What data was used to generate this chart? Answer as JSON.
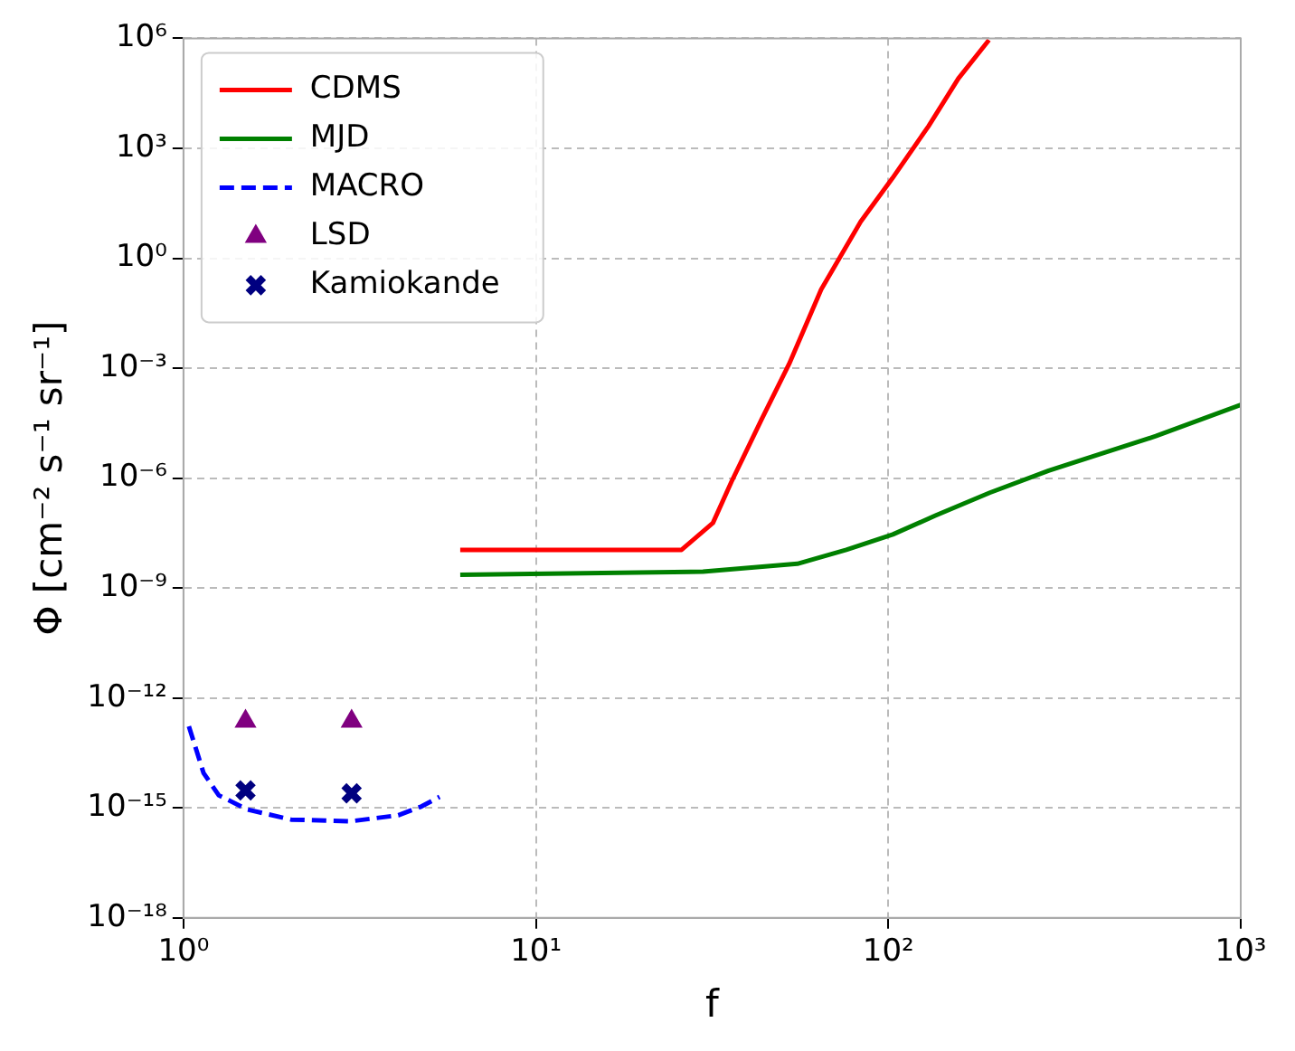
{
  "chart_data": {
    "type": "line",
    "xlabel": "f",
    "ylabel": "Φ [cm⁻² s⁻¹ sr⁻¹]",
    "log": "xy",
    "grid": true,
    "legend": "top left",
    "xlim": [
      1,
      1000
    ],
    "xticks": [
      {
        "value": 1,
        "label": "10⁰"
      },
      {
        "value": 10,
        "label": "10¹"
      },
      {
        "value": 100,
        "label": "10²"
      },
      {
        "value": 1000,
        "label": "10³"
      }
    ],
    "ylim": [
      1e-18,
      1000000.0
    ],
    "yticks": [
      {
        "value": 1e-18,
        "label": "10⁻¹⁸"
      },
      {
        "value": 1e-15,
        "label": "10⁻¹⁵"
      },
      {
        "value": 1e-12,
        "label": "10⁻¹²"
      },
      {
        "value": 1e-09,
        "label": "10⁻⁹"
      },
      {
        "value": 1e-06,
        "label": "10⁻⁶"
      },
      {
        "value": 0.001,
        "label": "10⁻³"
      },
      {
        "value": 1,
        "label": "10⁰"
      },
      {
        "value": 1000,
        "label": "10³"
      },
      {
        "value": 1000000,
        "label": "10⁶"
      }
    ],
    "series": [
      {
        "name": "CDMS",
        "type": "line",
        "color": "#ff0000",
        "line_style": "solid",
        "marker": "none",
        "x": [
          6.1,
          25.9,
          31.8,
          35.9,
          43.7,
          52.3,
          64.5,
          83.5,
          102.6,
          130,
          158,
          193
        ],
        "values": [
          1.1e-08,
          1.1e-08,
          6e-08,
          8e-07,
          4e-05,
          0.0013,
          0.14,
          10,
          150,
          4000,
          80000,
          900000
        ]
      },
      {
        "name": "MJD",
        "type": "line",
        "color": "#008000",
        "line_style": "solid",
        "marker": "none",
        "x": [
          6.1,
          29.8,
          55.2,
          76,
          103,
          136,
          194,
          285,
          574,
          1000
        ],
        "values": [
          2.3e-09,
          2.8e-09,
          4.6e-09,
          1.1e-08,
          2.9e-08,
          9.5e-08,
          4e-07,
          1.6e-06,
          1.4e-05,
          0.0001
        ]
      },
      {
        "name": "MACRO",
        "type": "line",
        "color": "#0000ff",
        "line_style": "dashed",
        "marker": "none",
        "x": [
          1.036,
          1.14,
          1.26,
          1.52,
          2.02,
          2.97,
          4.07,
          4.74,
          5.33
        ],
        "values": [
          1.7e-13,
          9e-15,
          2.2e-15,
          9e-16,
          4.8e-16,
          4.3e-16,
          6.3e-16,
          1.1e-15,
          2e-15
        ]
      },
      {
        "name": "LSD",
        "type": "scatter",
        "color": "#800080",
        "marker": "triangle",
        "x": [
          1.5,
          3
        ],
        "values": [
          2.3e-13,
          2.3e-13
        ]
      },
      {
        "name": "Kamiokande",
        "type": "scatter",
        "color": "#000080",
        "marker": "cross",
        "x": [
          1.5,
          3
        ],
        "values": [
          3e-15,
          2.5e-15
        ]
      }
    ]
  }
}
